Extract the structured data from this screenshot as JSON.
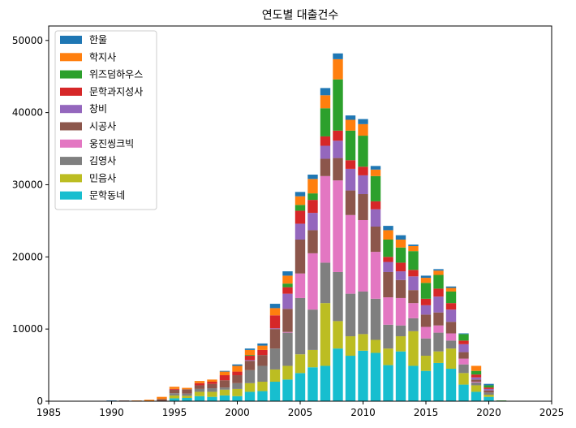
{
  "chart_data": {
    "type": "bar",
    "stacked": true,
    "title": "연도별 대출건수",
    "xlabel": "",
    "ylabel": "",
    "xlim": [
      1985,
      2025
    ],
    "ylim": [
      0,
      52000
    ],
    "xticks": [
      1985,
      1990,
      1995,
      2000,
      2005,
      2010,
      2015,
      2020,
      2025
    ],
    "yticks": [
      0,
      10000,
      20000,
      30000,
      40000,
      50000
    ],
    "legend_position": "top-left",
    "x": [
      1988,
      1989,
      1990,
      1991,
      1992,
      1993,
      1994,
      1995,
      1996,
      1997,
      1998,
      1999,
      2000,
      2001,
      2002,
      2003,
      2004,
      2005,
      2006,
      2007,
      2008,
      2009,
      2010,
      2011,
      2012,
      2013,
      2014,
      2015,
      2016,
      2017,
      2018,
      2019,
      2020,
      2021
    ],
    "series": [
      {
        "name": "문학동네",
        "color": "#17becf",
        "values": [
          0,
          0,
          0,
          0,
          0,
          0,
          0,
          400,
          450,
          700,
          600,
          800,
          700,
          1300,
          1400,
          2700,
          3000,
          3900,
          4700,
          4900,
          7300,
          6300,
          7000,
          6700,
          5000,
          6900,
          4900,
          4200,
          5300,
          4500,
          2300,
          1300,
          600,
          0
        ]
      },
      {
        "name": "민음사",
        "color": "#bcbd22",
        "values": [
          0,
          0,
          0,
          0,
          0,
          0,
          0,
          400,
          300,
          600,
          700,
          800,
          1000,
          1200,
          1300,
          1700,
          1900,
          2600,
          2400,
          8700,
          3800,
          2700,
          2300,
          1800,
          2300,
          2100,
          4800,
          2100,
          1600,
          2800,
          1600,
          900,
          300,
          0
        ]
      },
      {
        "name": "김영사",
        "color": "#7f7f7f",
        "values": [
          0,
          0,
          0,
          0,
          0,
          0,
          0,
          300,
          300,
          400,
          500,
          300,
          800,
          1800,
          2200,
          2900,
          4600,
          7800,
          5600,
          5600,
          6800,
          5900,
          5900,
          5700,
          3300,
          1500,
          1800,
          2400,
          2600,
          1100,
          1200,
          400,
          300,
          0
        ]
      },
      {
        "name": "웅진씽크빅",
        "color": "#e377c2",
        "values": [
          0,
          0,
          0,
          0,
          0,
          0,
          0,
          0,
          0,
          0,
          0,
          0,
          0,
          0,
          0,
          0,
          100,
          3400,
          7800,
          12000,
          12700,
          10900,
          9900,
          6500,
          3800,
          3800,
          2100,
          1600,
          1000,
          1000,
          800,
          100,
          0,
          0
        ]
      },
      {
        "name": "시공사",
        "color": "#8c564b",
        "values": [
          0,
          0,
          0,
          100,
          0,
          0,
          300,
          500,
          600,
          500,
          600,
          1000,
          1100,
          1300,
          1500,
          2700,
          3200,
          4700,
          3200,
          2400,
          3100,
          3400,
          3600,
          3500,
          3500,
          2500,
          1800,
          1700,
          1800,
          1600,
          900,
          300,
          300,
          0
        ]
      },
      {
        "name": "창비",
        "color": "#9467bd",
        "values": [
          0,
          0,
          0,
          0,
          0,
          0,
          0,
          0,
          0,
          0,
          0,
          0,
          0,
          100,
          0,
          100,
          2100,
          2200,
          2400,
          1800,
          2400,
          3000,
          2600,
          2400,
          1400,
          1200,
          1900,
          1300,
          2200,
          1700,
          1100,
          300,
          200,
          0
        ]
      },
      {
        "name": "문학과지성사",
        "color": "#d62728",
        "values": [
          0,
          0,
          0,
          0,
          0,
          0,
          0,
          100,
          0,
          300,
          300,
          700,
          500,
          600,
          700,
          1800,
          900,
          1800,
          1800,
          1300,
          1400,
          1200,
          1200,
          1100,
          700,
          1200,
          900,
          900,
          1100,
          900,
          500,
          400,
          200,
          0
        ]
      },
      {
        "name": "위즈덤하우스",
        "color": "#2ca02c",
        "values": [
          0,
          0,
          0,
          0,
          0,
          0,
          0,
          0,
          0,
          0,
          0,
          0,
          0,
          100,
          0,
          0,
          500,
          800,
          900,
          3900,
          7100,
          4100,
          4300,
          3500,
          2400,
          2100,
          2600,
          2200,
          1900,
          1600,
          900,
          500,
          300,
          100
        ]
      },
      {
        "name": "학지사",
        "color": "#ff7f0e",
        "values": [
          0,
          0,
          0,
          0,
          100,
          200,
          300,
          300,
          200,
          300,
          300,
          500,
          800,
          700,
          600,
          1000,
          1100,
          1200,
          2000,
          1800,
          2800,
          1500,
          1600,
          900,
          1300,
          1100,
          700,
          700,
          600,
          500,
          0,
          700,
          0,
          0
        ]
      },
      {
        "name": "한울",
        "color": "#1f77b4",
        "values": [
          0,
          0,
          100,
          0,
          0,
          0,
          0,
          0,
          0,
          0,
          0,
          100,
          200,
          200,
          300,
          600,
          600,
          600,
          600,
          1000,
          800,
          600,
          700,
          500,
          600,
          600,
          200,
          300,
          200,
          200,
          100,
          0,
          200,
          0
        ]
      }
    ]
  }
}
